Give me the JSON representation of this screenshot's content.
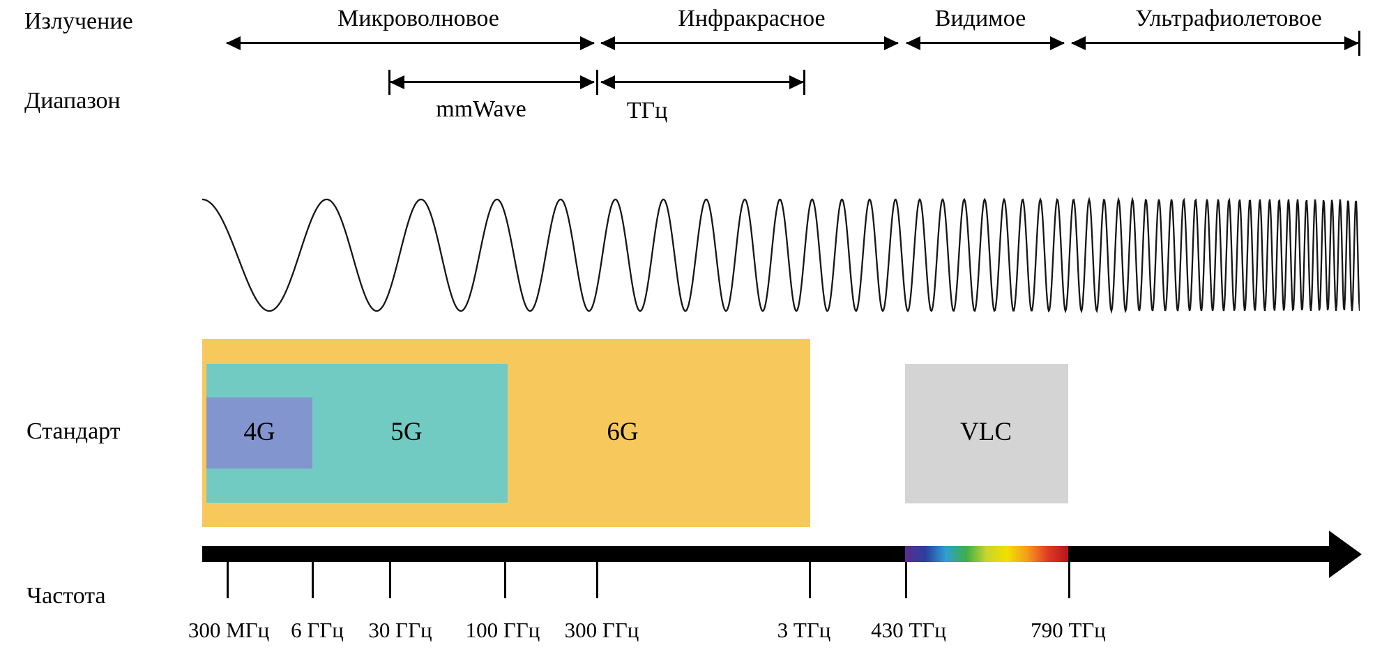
{
  "row_labels": {
    "radiation": "Излучение",
    "band": "Диапазон",
    "standard": "Стандарт",
    "frequency": "Частота"
  },
  "radiation_ranges": [
    {
      "label": "Микроволновое"
    },
    {
      "label": "Инфракрасное"
    },
    {
      "label": "Видимое"
    },
    {
      "label": "Ультрафиолетовое"
    }
  ],
  "band_ranges": [
    {
      "label": "mmWave"
    },
    {
      "label": "ТГц"
    }
  ],
  "standards": [
    {
      "label": "4G",
      "color": "#8295ce"
    },
    {
      "label": "5G",
      "color": "#71cbc3"
    },
    {
      "label": "6G",
      "color": "#f7c95c"
    },
    {
      "label": "VLC",
      "color": "#d4d4d4"
    }
  ],
  "frequency_axis": {
    "ticks": [
      "300 МГц",
      "6 ГГц",
      "30 ГГц",
      "100 ГГц",
      "300 ГГц",
      "3 ТГц",
      "430 ТГц",
      "790 ТГц"
    ],
    "axis_color": "#000000",
    "spectrum_colors": [
      "#5b2d8e",
      "#2b3f9e",
      "#2f9fd0",
      "#3fae49",
      "#c8d62b",
      "#f2e000",
      "#f59b1e",
      "#e03a26",
      "#b5151b"
    ]
  }
}
